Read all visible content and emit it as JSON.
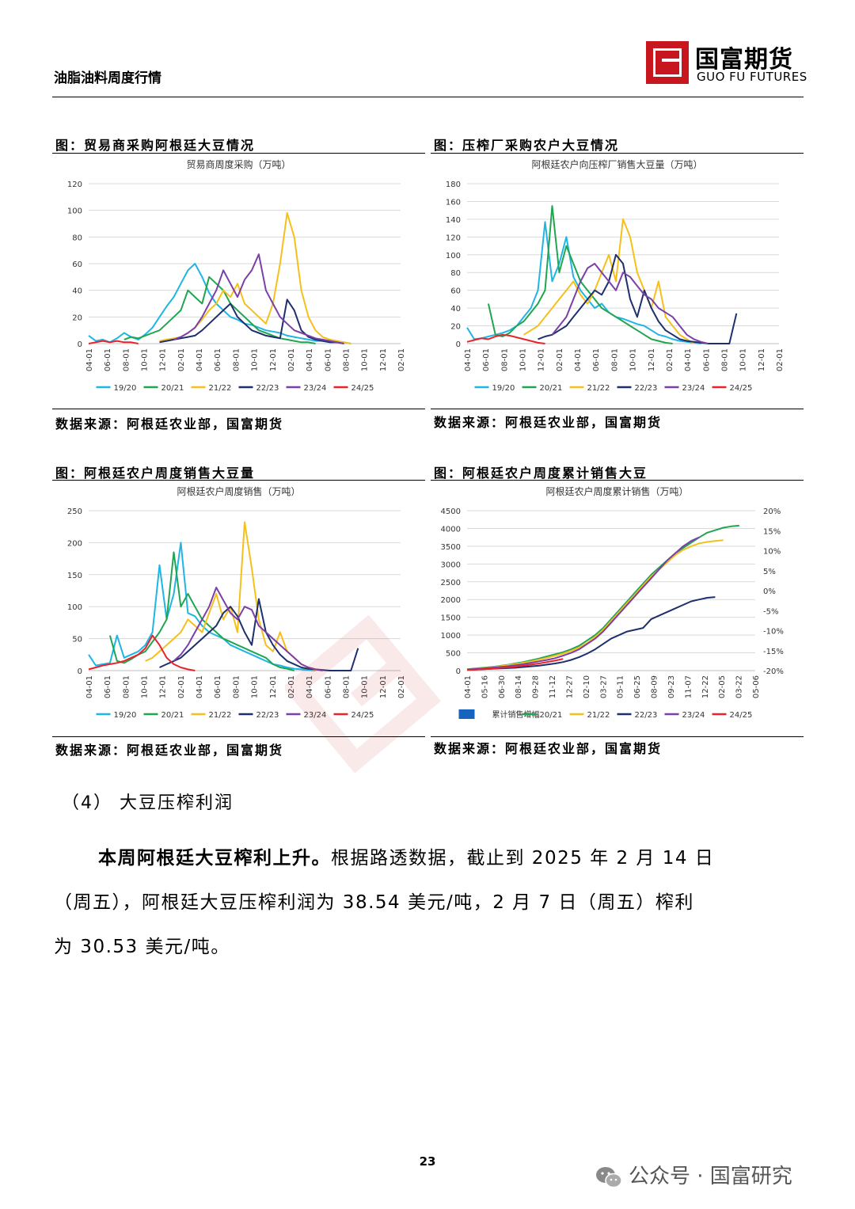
{
  "header": {
    "title": "油脂油料周度行情",
    "logo_cn": "国富期货",
    "logo_en": "GUO  FU  FUTURES"
  },
  "figures": [
    {
      "caption": "图：贸易商采购阿根廷大豆情况",
      "source": "数据来源：阿根廷农业部，国富期货"
    },
    {
      "caption": "图：压榨厂采购农户大豆情况",
      "source": "数据来源：阿根廷农业部，国富期货"
    },
    {
      "caption": "图：阿根廷农户周度销售大豆量",
      "source": "数据来源：阿根廷农业部，国富期货"
    },
    {
      "caption": "图：阿根廷农户周度累计销售大豆",
      "source": "数据来源：阿根廷农业部，国富期货"
    }
  ],
  "section": {
    "heading": "（4）  大豆压榨利润"
  },
  "paragraph": {
    "bold": "本周阿根廷大豆榨利上升。",
    "line1": "根据路透数据，截止到 2025 年 2 月 14 日",
    "line2": "（周五），阿根廷大豆压榨利润为 38.54 美元/吨，2 月 7 日（周五）榨利",
    "line3": "为 30.53 美元/吨。"
  },
  "page_number": "23",
  "wechat_text": "公众号 · 国富研究",
  "colors": {
    "s1920": "#1fb5e5",
    "s2021": "#21a550",
    "s2122": "#f5c01c",
    "s2223": "#1f2f6e",
    "s2324": "#7b3fa8",
    "s2425": "#e8232a",
    "bar": "#1565c0",
    "brand": "#c8161e"
  },
  "chart_data": [
    {
      "type": "line",
      "title": "贸易商周度采购（万吨）",
      "ylim": [
        0,
        120
      ],
      "yticks": [
        "0",
        "20",
        "40",
        "60",
        "80",
        "100",
        "120"
      ],
      "xticks": [
        "04-01",
        "06-01",
        "08-01",
        "10-01",
        "12-01",
        "02-01",
        "04-01",
        "06-01",
        "08-01",
        "10-01",
        "12-01",
        "02-01",
        "04-01",
        "06-01",
        "08-01",
        "10-01",
        "12-01",
        "02-01"
      ],
      "legend": [
        "19/20",
        "20/21",
        "21/22",
        "22/23",
        "23/24",
        "24/25"
      ],
      "series": [
        {
          "name": "19/20",
          "start": 0,
          "values": [
            6,
            2,
            3,
            1,
            4,
            8,
            5,
            3,
            7,
            12,
            20,
            28,
            35,
            45,
            55,
            60,
            50,
            38,
            30,
            25,
            20,
            18,
            15,
            14,
            12,
            10,
            9,
            8,
            6,
            5,
            4,
            3,
            2,
            2,
            1,
            1,
            1,
            0
          ]
        },
        {
          "name": "20/21",
          "start": 5,
          "values": [
            3,
            5,
            4,
            6,
            8,
            10,
            15,
            20,
            25,
            40,
            35,
            30,
            50,
            45,
            40,
            30,
            25,
            20,
            15,
            10,
            8,
            6,
            4,
            3,
            2,
            1,
            1,
            0
          ]
        },
        {
          "name": "21/22",
          "start": 10,
          "values": [
            2,
            3,
            4,
            5,
            8,
            12,
            18,
            25,
            30,
            40,
            35,
            45,
            30,
            25,
            20,
            15,
            30,
            60,
            98,
            80,
            40,
            20,
            10,
            5,
            3,
            2,
            1,
            0
          ]
        },
        {
          "name": "22/23",
          "start": 10,
          "values": [
            1,
            2,
            3,
            4,
            5,
            6,
            10,
            15,
            20,
            25,
            30,
            20,
            15,
            10,
            8,
            6,
            5,
            4,
            33,
            25,
            10,
            5,
            3,
            2,
            1,
            1,
            0
          ]
        },
        {
          "name": "23/24",
          "start": 12,
          "values": [
            3,
            5,
            8,
            12,
            20,
            30,
            40,
            55,
            45,
            35,
            48,
            55,
            67,
            40,
            30,
            20,
            15,
            10,
            8,
            6,
            4,
            3,
            2,
            1,
            0
          ]
        },
        {
          "name": "24/25",
          "start": 0,
          "values": [
            0,
            1,
            2,
            1,
            2,
            1,
            1,
            0
          ]
        }
      ]
    },
    {
      "type": "line",
      "title": "阿根廷农户向压榨厂销售大豆量（万吨）",
      "ylim": [
        0,
        180
      ],
      "yticks": [
        "0",
        "20",
        "40",
        "60",
        "80",
        "100",
        "120",
        "140",
        "160",
        "180"
      ],
      "xticks": [
        "04-01",
        "06-01",
        "08-01",
        "10-01",
        "12-01",
        "02-01",
        "04-01",
        "06-01",
        "08-01",
        "10-01",
        "12-01",
        "02-01",
        "04-01",
        "06-01",
        "08-01",
        "10-01",
        "12-01",
        "02-01"
      ],
      "legend": [
        "19/20",
        "20/21",
        "21/22",
        "22/23",
        "23/24",
        "24/25"
      ],
      "series": [
        {
          "name": "19/20",
          "start": 0,
          "values": [
            18,
            5,
            6,
            8,
            10,
            12,
            15,
            20,
            30,
            40,
            60,
            137,
            70,
            90,
            120,
            75,
            60,
            50,
            40,
            45,
            35,
            30,
            28,
            25,
            22,
            20,
            15,
            10,
            8,
            5,
            3,
            2,
            1,
            0
          ]
        },
        {
          "name": "20/21",
          "start": 3,
          "values": [
            45,
            10,
            8,
            12,
            20,
            25,
            35,
            45,
            60,
            155,
            80,
            110,
            90,
            70,
            60,
            50,
            40,
            35,
            30,
            25,
            20,
            15,
            10,
            5,
            3,
            1,
            0
          ]
        },
        {
          "name": "21/22",
          "start": 8,
          "values": [
            10,
            15,
            20,
            30,
            40,
            50,
            60,
            70,
            55,
            45,
            60,
            80,
            100,
            70,
            140,
            120,
            80,
            60,
            40,
            70,
            30,
            20,
            10,
            5,
            0
          ]
        },
        {
          "name": "22/23",
          "start": 10,
          "values": [
            5,
            8,
            10,
            15,
            20,
            30,
            40,
            50,
            60,
            55,
            70,
            100,
            90,
            50,
            30,
            60,
            40,
            25,
            15,
            10,
            5,
            3,
            2,
            1,
            0,
            0,
            0,
            0,
            34
          ]
        },
        {
          "name": "23/24",
          "start": 12,
          "values": [
            10,
            20,
            30,
            50,
            70,
            85,
            90,
            80,
            70,
            60,
            80,
            75,
            65,
            55,
            50,
            40,
            35,
            30,
            20,
            10,
            5,
            2,
            0
          ]
        },
        {
          "name": "24/25",
          "start": 0,
          "values": [
            2,
            4,
            6,
            5,
            8,
            10,
            9,
            7,
            5,
            3,
            1,
            0
          ]
        }
      ]
    },
    {
      "type": "line",
      "title": "阿根廷农户周度销售（万吨）",
      "ylim": [
        0,
        250
      ],
      "yticks": [
        "0",
        "50",
        "100",
        "150",
        "200",
        "250"
      ],
      "xticks": [
        "04-01",
        "06-01",
        "08-01",
        "10-01",
        "12-01",
        "02-01",
        "04-01",
        "06-01",
        "08-01",
        "10-01",
        "12-01",
        "02-01",
        "04-01",
        "06-01",
        "08-01",
        "10-01",
        "12-01",
        "02-01"
      ],
      "legend": [
        "19/20",
        "20/21",
        "21/22",
        "22/23",
        "23/24",
        "24/25"
      ],
      "series": [
        {
          "name": "19/20",
          "start": 0,
          "values": [
            25,
            8,
            10,
            12,
            55,
            20,
            25,
            30,
            40,
            60,
            165,
            80,
            120,
            200,
            90,
            85,
            70,
            60,
            55,
            50,
            40,
            35,
            30,
            25,
            20,
            15,
            10,
            8,
            5,
            3,
            2,
            1,
            0
          ]
        },
        {
          "name": "20/21",
          "start": 3,
          "values": [
            55,
            15,
            12,
            18,
            25,
            30,
            45,
            60,
            80,
            185,
            100,
            120,
            100,
            80,
            70,
            60,
            50,
            45,
            40,
            35,
            30,
            25,
            20,
            10,
            5,
            3,
            0
          ]
        },
        {
          "name": "21/22",
          "start": 8,
          "values": [
            15,
            20,
            30,
            40,
            50,
            60,
            80,
            70,
            60,
            90,
            120,
            80,
            100,
            60,
            232,
            160,
            80,
            40,
            30,
            60,
            30,
            20,
            10,
            5,
            0
          ]
        },
        {
          "name": "22/23",
          "start": 10,
          "values": [
            5,
            10,
            15,
            20,
            30,
            40,
            50,
            60,
            70,
            90,
            100,
            85,
            60,
            40,
            112,
            60,
            40,
            25,
            15,
            10,
            5,
            3,
            2,
            1,
            0,
            0,
            0,
            0,
            35
          ]
        },
        {
          "name": "23/24",
          "start": 12,
          "values": [
            15,
            25,
            40,
            60,
            80,
            100,
            130,
            110,
            90,
            80,
            100,
            95,
            70,
            60,
            50,
            40,
            30,
            20,
            10,
            5,
            2,
            0
          ]
        },
        {
          "name": "24/25",
          "start": 0,
          "values": [
            2,
            5,
            8,
            10,
            12,
            15,
            20,
            25,
            35,
            55,
            40,
            20,
            10,
            5,
            2,
            0
          ]
        }
      ]
    },
    {
      "type": "line",
      "title": "阿根廷农户周度累计销售（万吨）",
      "ylim": [
        0,
        4500
      ],
      "yticks": [
        "0",
        "500",
        "1000",
        "1500",
        "2000",
        "2500",
        "3000",
        "3500",
        "4000",
        "4500"
      ],
      "y2ticks": [
        "-20%",
        "-15%",
        "-10%",
        "-5%",
        "0%",
        "5%",
        "10%",
        "15%",
        "20%"
      ],
      "xticks": [
        "04-01",
        "05-16",
        "06-30",
        "08-14",
        "09-28",
        "11-12",
        "12-27",
        "02-10",
        "03-27",
        "05-11",
        "06-25",
        "08-09",
        "09-23",
        "11-07",
        "12-22",
        "02-05",
        "03-22",
        "05-06"
      ],
      "legend": [
        "累计销售增幅",
        "20/21",
        "21/22",
        "22/23",
        "23/24",
        "24/25"
      ],
      "bar_series": {
        "name": "累计销售增幅",
        "unit": "%",
        "start": 10,
        "values": [
          0,
          0,
          0,
          0,
          0,
          0,
          0,
          0,
          0,
          0,
          0,
          0,
          0
        ]
      },
      "series": [
        {
          "name": "20/21",
          "start": 0,
          "values": [
            40,
            60,
            80,
            100,
            130,
            160,
            200,
            240,
            290,
            340,
            400,
            460,
            520,
            600,
            700,
            850,
            1000,
            1200,
            1450,
            1700,
            1950,
            2200,
            2450,
            2700,
            2900,
            3100,
            3300,
            3450,
            3600,
            3750,
            3880,
            3950,
            4020,
            4060,
            4080
          ]
        },
        {
          "name": "21/22",
          "start": 0,
          "values": [
            30,
            50,
            70,
            90,
            120,
            150,
            180,
            220,
            260,
            310,
            360,
            420,
            480,
            560,
            650,
            780,
            950,
            1150,
            1400,
            1650,
            1900,
            2150,
            2400,
            2650,
            2850,
            3050,
            3250,
            3400,
            3500,
            3580,
            3620,
            3650,
            3670
          ]
        },
        {
          "name": "22/23",
          "start": 0,
          "values": [
            20,
            30,
            40,
            50,
            60,
            70,
            80,
            100,
            120,
            140,
            170,
            200,
            240,
            300,
            380,
            480,
            600,
            750,
            900,
            1000,
            1100,
            1150,
            1200,
            1450,
            1550,
            1650,
            1750,
            1850,
            1950,
            2000,
            2050,
            2070
          ]
        },
        {
          "name": "23/24",
          "start": 0,
          "values": [
            30,
            45,
            60,
            80,
            100,
            120,
            150,
            180,
            220,
            260,
            300,
            350,
            420,
            500,
            600,
            750,
            900,
            1100,
            1350,
            1600,
            1850,
            2100,
            2350,
            2600,
            2850,
            3100,
            3300,
            3500,
            3650,
            3750
          ]
        },
        {
          "name": "24/25",
          "start": 0,
          "values": [
            20,
            30,
            40,
            50,
            70,
            90,
            110,
            140,
            170,
            200,
            240,
            280,
            330
          ]
        }
      ]
    }
  ]
}
